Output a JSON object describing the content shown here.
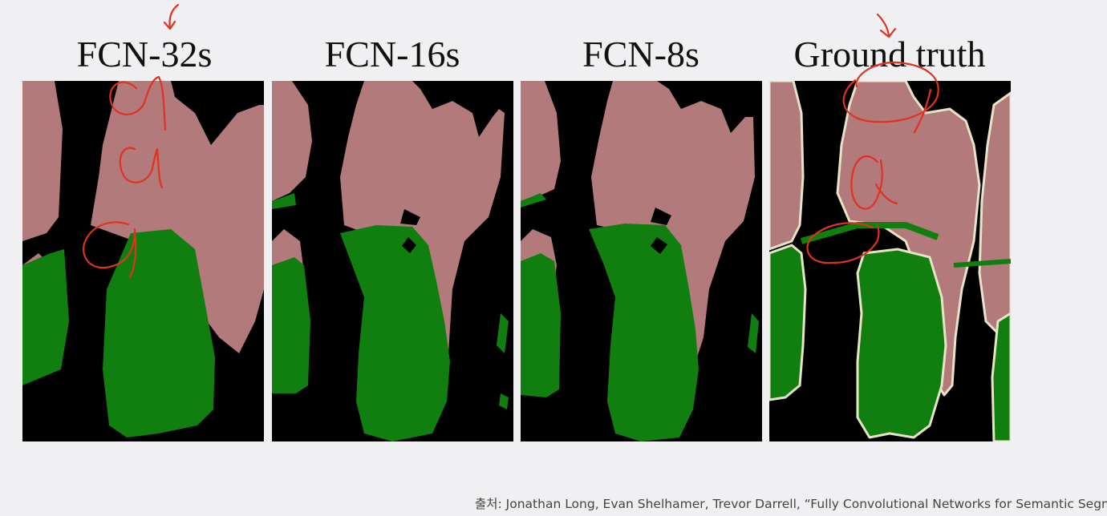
{
  "figure": {
    "panels": [
      {
        "id": "fcn32s",
        "label": "FCN-32s"
      },
      {
        "id": "fcn16s",
        "label": "FCN-16s"
      },
      {
        "id": "fcn8s",
        "label": "FCN-8s"
      },
      {
        "id": "gt",
        "label": "Ground truth"
      }
    ],
    "colors": {
      "person": "#b27a7a",
      "bicycle": "#107f10",
      "background": "#000000",
      "boundary": "#e8e3c6",
      "annotation": "#e0321e"
    }
  },
  "citation": {
    "text": "출처: Jonathan Long, Evan Shelhamer, Trevor Darrell, “Fully Convolutional Networks for Semantic Segmenta"
  }
}
